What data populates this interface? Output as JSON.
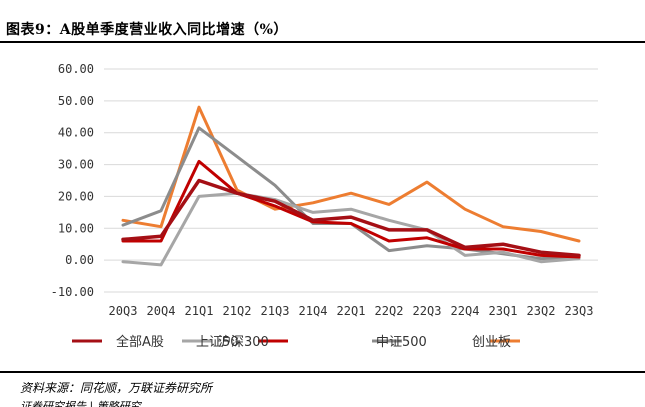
{
  "figure": {
    "title": "图表9：A股单季度营业收入同比增速（%）",
    "source": "资料来源：同花顺，万联证券研究所",
    "next_line": "证券研究报告 | 策略研究"
  },
  "chart_data": {
    "type": "line",
    "title": "",
    "xlabel": "",
    "ylabel": "",
    "ylim": [
      -10,
      60
    ],
    "yticks": [
      "-10.00",
      "0.00",
      "10.00",
      "20.00",
      "30.00",
      "40.00",
      "50.00",
      "60.00"
    ],
    "grid": true,
    "legend_position": "bottom",
    "categories": [
      "20Q3",
      "20Q4",
      "21Q1",
      "21Q2",
      "21Q3",
      "21Q4",
      "22Q1",
      "22Q2",
      "22Q3",
      "22Q4",
      "23Q1",
      "23Q2",
      "23Q3"
    ],
    "series": [
      {
        "name": "全部A股",
        "color": "#a50f15",
        "values": [
          6.5,
          7.5,
          25,
          21,
          18.5,
          12.5,
          13.5,
          9.5,
          9.5,
          4,
          5,
          2.5,
          1.5
        ]
      },
      {
        "name": "上证50",
        "color": "#a6a6a6",
        "values": [
          -0.5,
          -1.5,
          20,
          21,
          19,
          15,
          16,
          12.5,
          9.5,
          1.5,
          2.5,
          -0.5,
          0.5
        ]
      },
      {
        "name": "沪深300",
        "color": "#c00000",
        "values": [
          6,
          6,
          31,
          21,
          17,
          12,
          11.5,
          6,
          7,
          3.5,
          3.5,
          1.5,
          1
        ]
      },
      {
        "name": "中证500",
        "color": "#8c8c8c",
        "values": [
          11,
          15.5,
          41.5,
          32.5,
          23.5,
          11.5,
          11.5,
          3,
          4.5,
          3.5,
          2,
          0.5,
          1
        ]
      },
      {
        "name": "创业板",
        "color": "#ed7d31",
        "values": [
          12.5,
          10.5,
          48,
          22,
          16,
          18,
          21,
          17.5,
          24.5,
          16,
          10.5,
          9,
          6
        ]
      }
    ]
  }
}
